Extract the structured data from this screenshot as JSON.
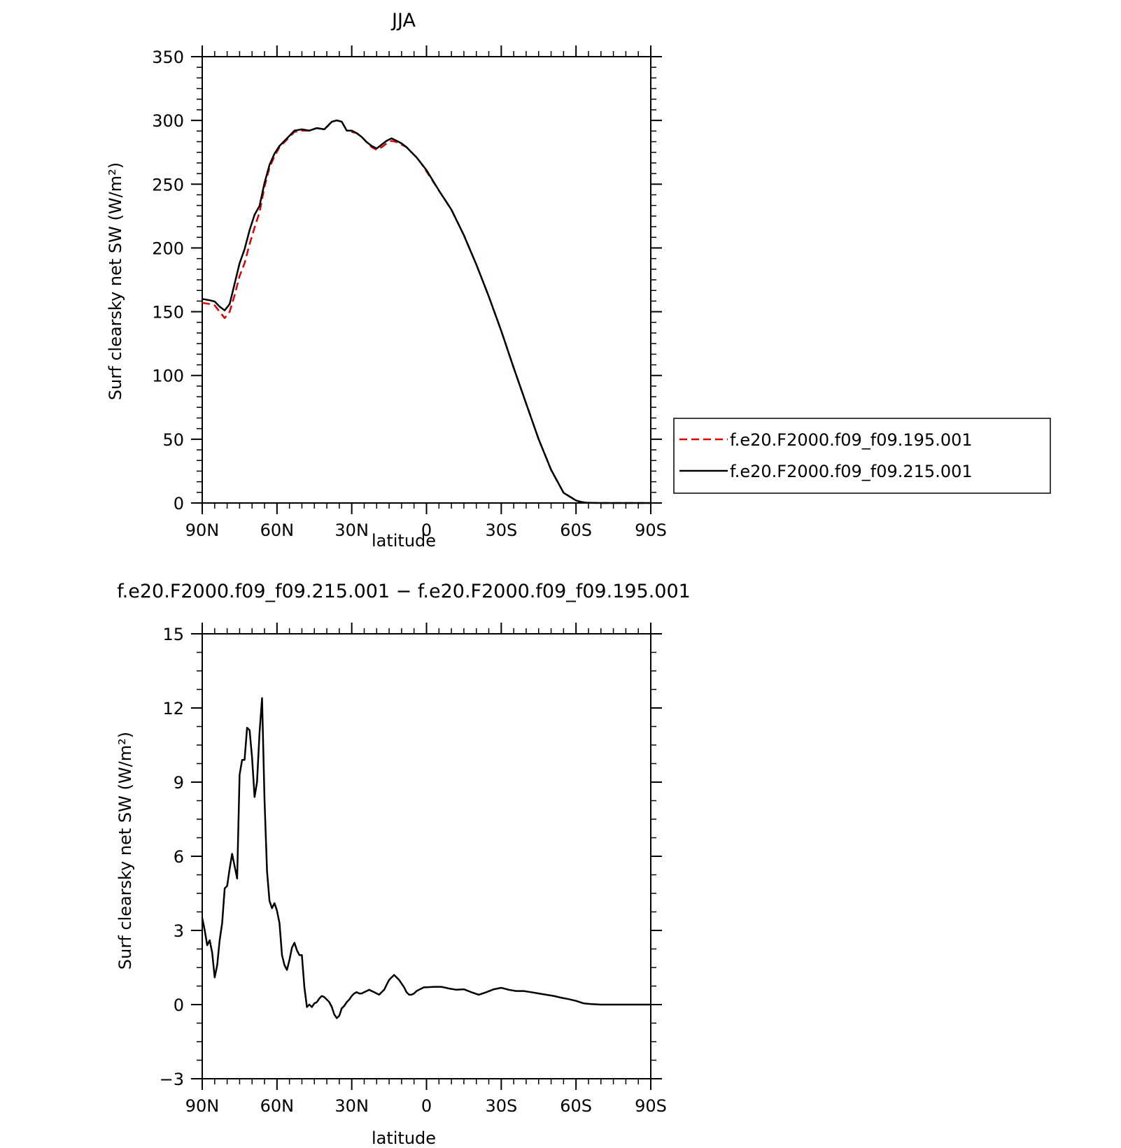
{
  "chart_data": [
    {
      "type": "line",
      "title": "JJA",
      "xlabel": "latitude",
      "ylabel": "Surf clearsky net SW (W/m²)",
      "xlim": [
        90,
        -90
      ],
      "ylim": [
        0,
        350
      ],
      "x_tick_values": [
        90,
        60,
        30,
        0,
        -30,
        -60,
        -90
      ],
      "x_tick_labels": [
        "90N",
        "60N",
        "30N",
        "0",
        "30S",
        "60S",
        "90S"
      ],
      "y_tick_values": [
        0,
        50,
        100,
        150,
        200,
        250,
        300,
        350
      ],
      "y_tick_labels": [
        "0",
        "50",
        "100",
        "150",
        "200",
        "250",
        "300",
        "350"
      ],
      "grid": false,
      "legend_position": "right",
      "series": [
        {
          "name": "f.e20.F2000.f09_f09.195.001",
          "color": "#e00000",
          "dash": "dashed",
          "x": [
            90,
            87,
            85,
            83,
            81,
            79,
            77,
            75,
            73,
            71,
            69,
            67,
            65,
            63,
            61,
            59,
            56,
            53,
            50,
            47,
            44,
            41,
            38,
            36,
            34,
            32,
            30,
            28,
            26,
            24,
            22,
            20,
            18,
            16,
            14,
            12,
            10,
            8,
            6,
            4,
            2,
            0,
            -5,
            -10,
            -15,
            -20,
            -25,
            -30,
            -35,
            -40,
            -45,
            -50,
            -55,
            -60,
            -62,
            -64,
            -66,
            -68,
            -70,
            -75,
            -80,
            -85,
            -90
          ],
          "y": [
            157,
            156,
            155,
            150,
            145,
            150,
            163,
            178,
            188,
            203,
            216,
            228,
            248,
            263,
            272,
            279,
            285,
            291,
            292,
            292,
            294,
            293,
            299,
            300,
            299,
            292,
            291,
            290,
            287,
            283,
            279,
            277,
            279,
            282,
            284,
            283,
            281,
            279,
            275,
            271,
            266,
            260,
            245,
            230,
            210,
            187,
            162,
            135,
            106,
            78,
            50,
            26,
            8,
            2,
            0.8,
            0.3,
            0.1,
            0.05,
            0,
            0,
            0,
            0,
            0
          ]
        },
        {
          "name": "f.e20.F2000.f09_f09.215.001",
          "color": "#000000",
          "dash": "solid",
          "x": [
            90,
            87,
            85,
            83,
            81,
            79,
            77,
            75,
            73,
            71,
            69,
            67,
            65,
            63,
            61,
            59,
            56,
            53,
            50,
            47,
            44,
            41,
            38,
            36,
            34,
            32,
            30,
            28,
            26,
            24,
            22,
            20,
            18,
            16,
            14,
            12,
            10,
            8,
            6,
            4,
            2,
            0,
            -5,
            -10,
            -15,
            -20,
            -25,
            -30,
            -35,
            -40,
            -45,
            -50,
            -55,
            -60,
            -62,
            -64,
            -66,
            -68,
            -70,
            -75,
            -80,
            -85,
            -90
          ],
          "y": [
            160,
            159,
            158,
            154,
            151,
            156,
            172,
            188,
            199,
            214,
            226,
            233,
            251,
            265,
            274,
            280,
            286,
            292,
            293,
            292,
            294,
            293,
            299,
            300,
            299,
            292,
            292,
            290,
            287,
            283,
            280,
            278,
            281,
            284,
            286,
            284,
            282,
            279,
            275,
            271,
            266,
            261,
            245,
            230,
            210,
            187,
            162,
            135,
            106,
            78,
            50,
            26,
            8,
            2,
            0.8,
            0.3,
            0.1,
            0.05,
            0,
            0,
            0,
            0,
            0
          ]
        }
      ]
    },
    {
      "type": "line",
      "title": "f.e20.F2000.f09_f09.215.001 − f.e20.F2000.f09_f09.195.001",
      "xlabel": "latitude",
      "ylabel": "Surf clearsky net SW (W/m²)",
      "xlim": [
        90,
        -90
      ],
      "ylim": [
        -3,
        15
      ],
      "x_tick_values": [
        90,
        60,
        30,
        0,
        -30,
        -60,
        -90
      ],
      "x_tick_labels": [
        "90N",
        "60N",
        "30N",
        "0",
        "30S",
        "60S",
        "90S"
      ],
      "y_tick_values": [
        -3,
        0,
        3,
        6,
        9,
        12,
        15
      ],
      "y_tick_labels": [
        "−3",
        "0",
        "3",
        "6",
        "9",
        "12",
        "15"
      ],
      "grid": false,
      "series": [
        {
          "color": "#000000",
          "dash": "solid",
          "x": [
            90,
            89,
            88,
            87,
            86,
            85,
            84,
            83,
            82,
            81,
            80,
            79,
            78,
            77,
            76,
            75,
            74,
            73,
            72,
            71,
            70,
            69,
            68,
            67,
            66,
            65,
            64,
            63,
            62,
            61,
            60,
            59,
            58,
            57,
            56,
            55,
            54,
            53,
            52,
            51,
            50,
            49,
            48,
            47,
            46,
            45,
            44,
            43,
            42,
            41,
            40,
            39,
            38,
            37,
            36,
            35,
            34,
            33,
            32,
            31,
            30,
            29,
            28,
            27,
            26,
            25,
            24,
            23,
            22,
            21,
            20,
            19,
            18,
            17,
            16,
            15,
            14,
            13,
            12,
            11,
            10,
            9,
            8,
            7,
            6,
            5,
            4,
            3,
            2,
            1,
            0,
            -3,
            -6,
            -9,
            -12,
            -15,
            -18,
            -21,
            -24,
            -27,
            -30,
            -33,
            -36,
            -39,
            -42,
            -45,
            -48,
            -51,
            -54,
            -57,
            -60,
            -63,
            -66,
            -70,
            -75,
            -80,
            -85,
            -90
          ],
          "y": [
            3.5,
            3.0,
            2.4,
            2.6,
            2.1,
            1.1,
            1.6,
            2.6,
            3.3,
            4.7,
            4.8,
            5.5,
            6.1,
            5.6,
            5.1,
            9.3,
            9.9,
            9.9,
            11.2,
            11.1,
            10.0,
            8.4,
            9.0,
            11.0,
            12.4,
            8.3,
            5.4,
            4.2,
            3.9,
            4.1,
            3.8,
            3.3,
            2.0,
            1.6,
            1.4,
            1.8,
            2.3,
            2.5,
            2.2,
            2.0,
            2.0,
            0.7,
            -0.1,
            0.0,
            -0.1,
            0.05,
            0.1,
            0.25,
            0.35,
            0.3,
            0.2,
            0.1,
            -0.1,
            -0.4,
            -0.55,
            -0.45,
            -0.15,
            -0.05,
            0.1,
            0.2,
            0.35,
            0.45,
            0.5,
            0.45,
            0.45,
            0.5,
            0.55,
            0.6,
            0.55,
            0.5,
            0.45,
            0.4,
            0.5,
            0.6,
            0.8,
            1.0,
            1.1,
            1.2,
            1.1,
            1.0,
            0.85,
            0.7,
            0.5,
            0.4,
            0.4,
            0.45,
            0.55,
            0.6,
            0.65,
            0.7,
            0.7,
            0.72,
            0.72,
            0.65,
            0.6,
            0.62,
            0.5,
            0.4,
            0.5,
            0.62,
            0.68,
            0.6,
            0.55,
            0.55,
            0.5,
            0.45,
            0.4,
            0.35,
            0.28,
            0.22,
            0.15,
            0.05,
            0.02,
            0.0,
            0.0,
            0.0,
            0.0,
            0.0
          ]
        }
      ]
    }
  ]
}
